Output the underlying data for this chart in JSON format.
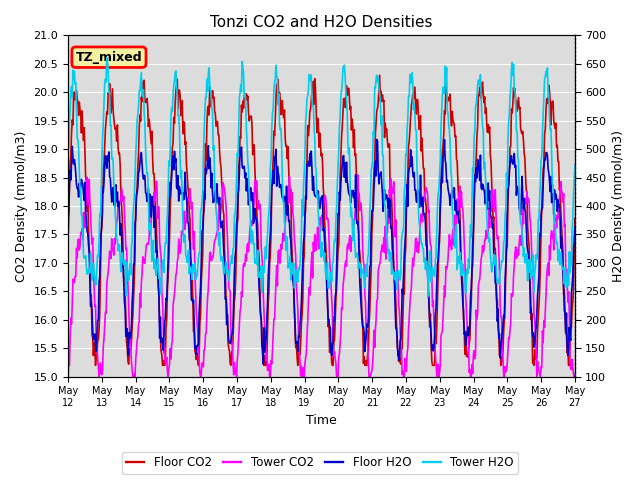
{
  "title": "Tonzi CO2 and H2O Densities",
  "xlabel": "Time",
  "ylabel_left": "CO2 Density (mmol/m3)",
  "ylabel_right": "H2O Density (mmol/m3)",
  "co2_ylim": [
    15.0,
    21.0
  ],
  "h2o_ylim": [
    100,
    700
  ],
  "co2_yticks": [
    15.0,
    15.5,
    16.0,
    16.5,
    17.0,
    17.5,
    18.0,
    18.5,
    19.0,
    19.5,
    20.0,
    20.5,
    21.0
  ],
  "h2o_yticks": [
    100,
    150,
    200,
    250,
    300,
    350,
    400,
    450,
    500,
    550,
    600,
    650,
    700
  ],
  "xtick_labels": [
    "May 12",
    "May 13",
    "May 14",
    "May 15",
    "May 16",
    "May 17",
    "May 18",
    "May 19",
    "May 20",
    "May 21",
    "May 22",
    "May 23",
    "May 24",
    "May 25",
    "May 26",
    "May 27"
  ],
  "floor_co2_color": "#CC0000",
  "tower_co2_color": "#FF00FF",
  "floor_h2o_color": "#0000CC",
  "tower_h2o_color": "#00CCEE",
  "legend_labels": [
    "Floor CO2",
    "Tower CO2",
    "Floor H2O",
    "Tower H2O"
  ],
  "tz_mixed_label": "TZ_mixed",
  "bg_color": "#DCDCDC",
  "linewidth": 1.2,
  "title_fontsize": 11,
  "axis_fontsize": 9,
  "tick_fontsize": 8
}
